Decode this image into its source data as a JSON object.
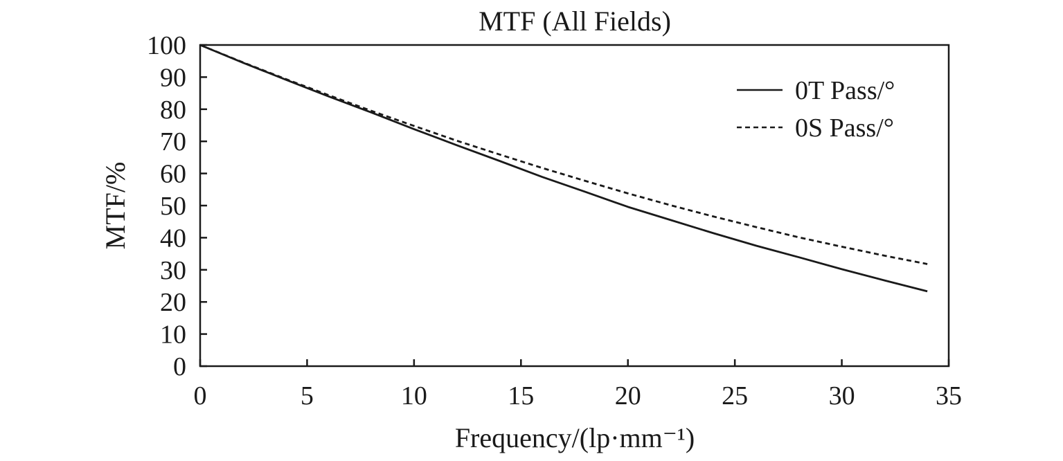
{
  "chart_data": {
    "type": "line",
    "title": "MTF (All Fields)",
    "xlabel": "Frequency/(lp·mm⁻¹)",
    "ylabel": "MTF/%",
    "xlim": [
      0,
      35
    ],
    "ylim": [
      0,
      100
    ],
    "xticks": [
      0,
      5,
      10,
      15,
      20,
      25,
      30,
      35
    ],
    "yticks": [
      0,
      10,
      20,
      30,
      40,
      50,
      60,
      70,
      80,
      90,
      100
    ],
    "grid": false,
    "legend_position": "top-right",
    "series": [
      {
        "name": "0T Pass/°",
        "style": "solid",
        "color": "#1a1a1a",
        "x": [
          0,
          2,
          4,
          6,
          8,
          10,
          12,
          14,
          16,
          18,
          20,
          22,
          24,
          26,
          28,
          30,
          32,
          34
        ],
        "y": [
          100,
          94.5,
          89.2,
          84.0,
          79.0,
          73.8,
          68.8,
          63.9,
          58.9,
          54.3,
          49.6,
          45.5,
          41.4,
          37.5,
          33.9,
          30.2,
          26.7,
          23.3
        ]
      },
      {
        "name": "0S Pass/°",
        "style": "dashed",
        "color": "#1a1a1a",
        "x": [
          0,
          2,
          4,
          6,
          8,
          10,
          12,
          14,
          16,
          18,
          20,
          22,
          24,
          26,
          28,
          30,
          32,
          34
        ],
        "y": [
          100,
          94.6,
          89.4,
          84.4,
          79.5,
          74.8,
          70.2,
          65.9,
          61.7,
          57.7,
          53.8,
          50.1,
          46.6,
          43.3,
          40.1,
          37.2,
          34.4,
          31.8
        ]
      }
    ]
  }
}
